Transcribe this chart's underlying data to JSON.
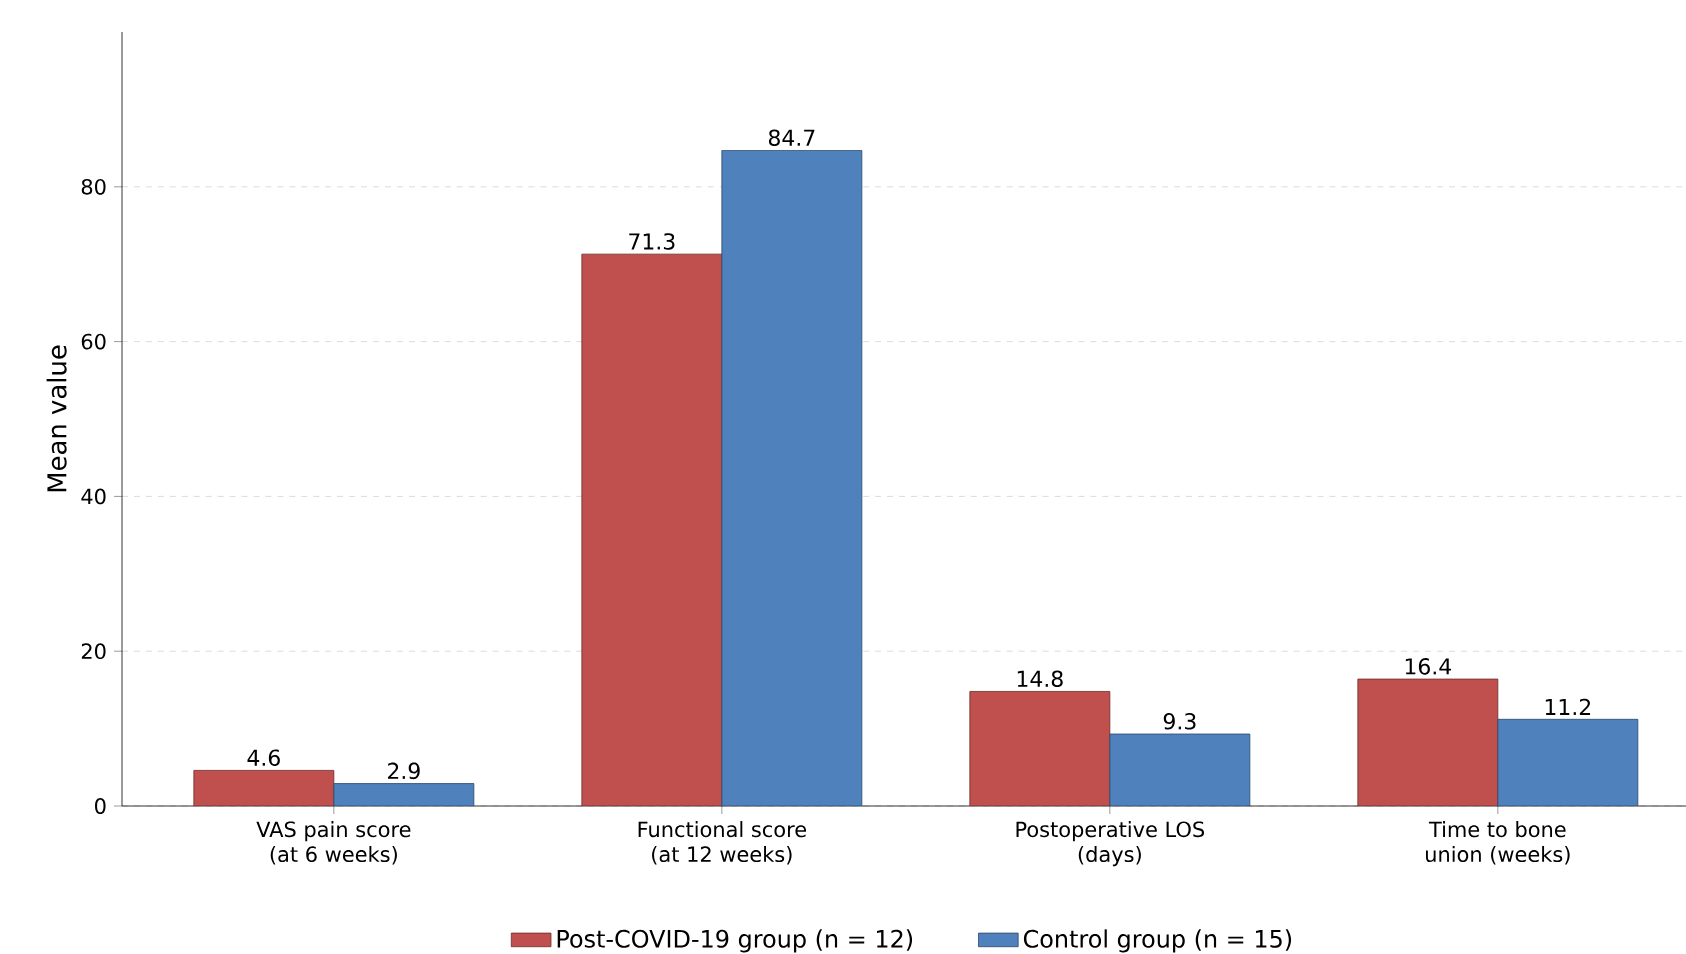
{
  "chart_data": {
    "type": "bar",
    "ylabel": "Mean value",
    "categories": [
      "VAS pain score (at 6 weeks)",
      "Functional score (at 12 weeks)",
      "Postoperative LOS (days)",
      "Time to bone union (weeks)"
    ],
    "series": [
      {
        "name": "Post-COVID-19 group (n = 12)",
        "color": "#c0504d",
        "values": [
          4.6,
          71.3,
          14.8,
          16.4
        ]
      },
      {
        "name": "Control group (n = 15)",
        "color": "#4f81bd",
        "values": [
          2.9,
          84.7,
          9.3,
          11.2
        ]
      }
    ],
    "ylim": [
      0,
      100
    ],
    "yticks": [
      0,
      20,
      40,
      60,
      80
    ],
    "grid": "y",
    "legend": "bottom",
    "data_labels": true
  }
}
